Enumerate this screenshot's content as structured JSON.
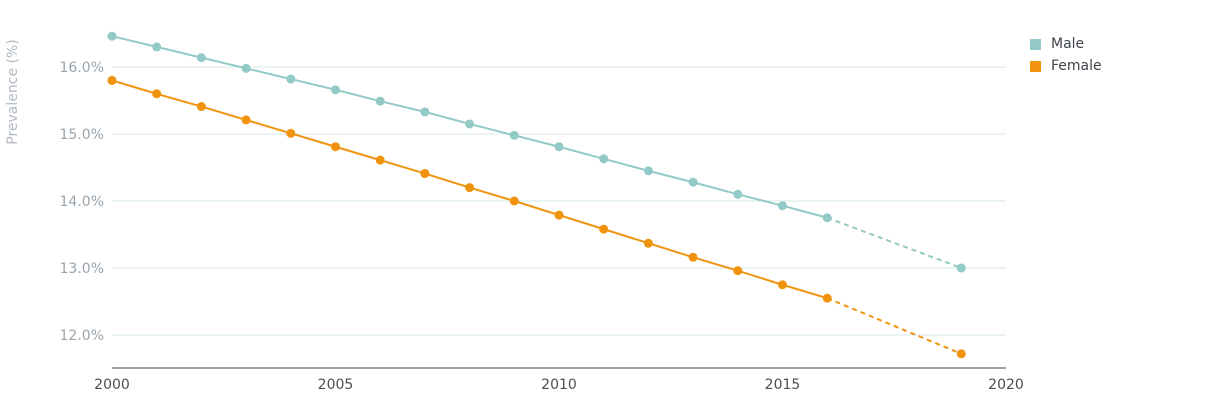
{
  "chart_data": {
    "type": "line",
    "title": "",
    "xlabel": "",
    "ylabel": "Prevalence (%)",
    "xlim": [
      2000,
      2020
    ],
    "ylim": [
      11.5,
      16.5
    ],
    "x_ticks": [
      2000,
      2005,
      2010,
      2015,
      2020
    ],
    "x_tick_labels": [
      "2000",
      "2005",
      "2010",
      "2015",
      "2020"
    ],
    "y_ticks": [
      12,
      13,
      14,
      15,
      16
    ],
    "y_tick_labels": [
      "12.0%",
      "13.0%",
      "14.0%",
      "15.0%",
      "16.0%"
    ],
    "grid": true,
    "legend_position": "top-right",
    "series": [
      {
        "name": "Male",
        "color": "#93c9c6",
        "x": [
          2000,
          2001,
          2002,
          2003,
          2004,
          2005,
          2006,
          2007,
          2008,
          2009,
          2010,
          2011,
          2012,
          2013,
          2014,
          2015,
          2016,
          2019
        ],
        "values": [
          16.46,
          16.3,
          16.14,
          15.98,
          15.82,
          15.66,
          15.49,
          15.33,
          15.15,
          14.98,
          14.81,
          14.63,
          14.45,
          14.28,
          14.1,
          13.93,
          13.75,
          13.0
        ],
        "projected_from": 2016
      },
      {
        "name": "Female",
        "color": "#f0930f",
        "x": [
          2000,
          2001,
          2002,
          2003,
          2004,
          2005,
          2006,
          2007,
          2008,
          2009,
          2010,
          2011,
          2012,
          2013,
          2014,
          2015,
          2016,
          2019
        ],
        "values": [
          15.8,
          15.6,
          15.41,
          15.21,
          15.01,
          14.81,
          14.61,
          14.41,
          14.2,
          14.0,
          13.79,
          13.58,
          13.37,
          13.16,
          12.96,
          12.75,
          12.55,
          11.72
        ],
        "projected_from": 2016
      }
    ]
  }
}
